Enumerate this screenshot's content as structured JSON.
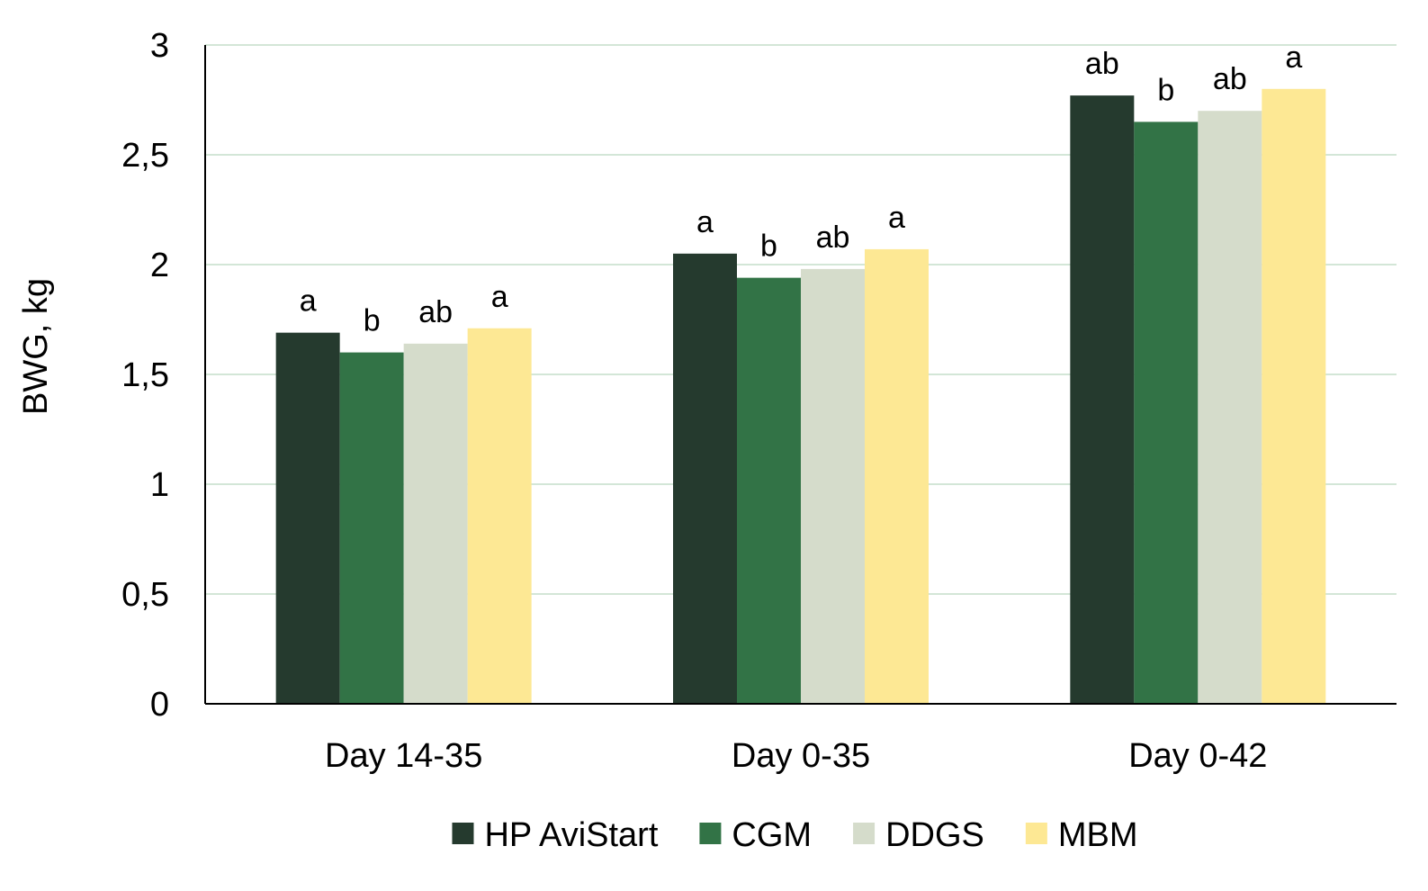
{
  "chart_data": {
    "type": "bar",
    "title": "",
    "xlabel": "",
    "ylabel": "BWG, kg",
    "ylim": [
      0,
      3
    ],
    "yticks": [
      0,
      0.5,
      1,
      1.5,
      2,
      2.5,
      3
    ],
    "ytick_labels": [
      "0",
      "0,5",
      "1",
      "1,5",
      "2",
      "2,5",
      "3"
    ],
    "grid": true,
    "legend_position": "bottom",
    "categories": [
      "Day 14-35",
      "Day 0-35",
      "Day 0-42"
    ],
    "series": [
      {
        "name": "HP AviStart",
        "color": "#253a2e",
        "values": [
          1.69,
          2.05,
          2.77
        ],
        "labels": [
          "a",
          "a",
          "ab"
        ]
      },
      {
        "name": "CGM",
        "color": "#327346",
        "values": [
          1.6,
          1.94,
          2.65
        ],
        "labels": [
          "b",
          "b",
          "b"
        ]
      },
      {
        "name": "DDGS",
        "color": "#d5dccb",
        "values": [
          1.64,
          1.98,
          2.7
        ],
        "labels": [
          "ab",
          "ab",
          "ab"
        ]
      },
      {
        "name": "MBM",
        "color": "#fde894",
        "values": [
          1.71,
          2.07,
          2.8
        ],
        "labels": [
          "a",
          "a",
          "a"
        ]
      }
    ],
    "gridline_color": "#d3e6d7"
  }
}
